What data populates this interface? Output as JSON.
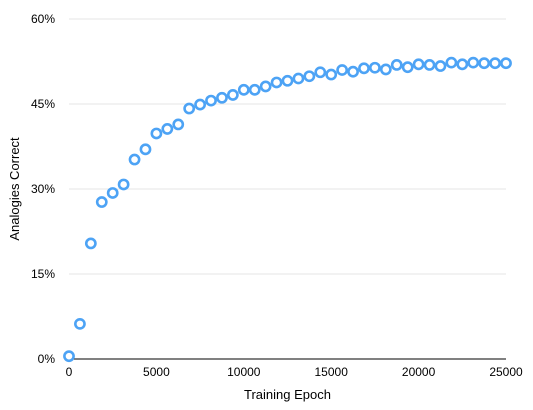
{
  "chart_data": {
    "type": "scatter",
    "title": "",
    "xlabel": "Training Epoch",
    "ylabel": "Analogies Correct",
    "xlim": [
      0,
      25000
    ],
    "ylim": [
      0,
      60
    ],
    "xticks": [
      0,
      5000,
      10000,
      15000,
      20000,
      25000
    ],
    "xtick_labels": [
      "0",
      "5000",
      "10000",
      "15000",
      "20000",
      "25000"
    ],
    "yticks": [
      0,
      15,
      30,
      45,
      60
    ],
    "ytick_labels": [
      "0%",
      "15%",
      "30%",
      "45%",
      "60%"
    ],
    "grid": "horizontal",
    "legend": "none",
    "marker_color": "#4da3f5",
    "series": [
      {
        "marker": "hollow-circle",
        "x": [
          0,
          625,
          1250,
          1875,
          2500,
          3125,
          3750,
          4375,
          5000,
          5625,
          6250,
          6875,
          7500,
          8125,
          8750,
          9375,
          10000,
          10625,
          11250,
          11875,
          12500,
          13125,
          13750,
          14375,
          15000,
          15625,
          16250,
          16875,
          17500,
          18125,
          18750,
          19375,
          20000,
          20625,
          21250,
          21875,
          22500,
          23125,
          23750,
          24375,
          25000
        ],
        "y": [
          0.5,
          6.2,
          20.4,
          27.7,
          29.3,
          30.8,
          35.2,
          37.0,
          39.8,
          40.6,
          41.4,
          44.2,
          44.9,
          45.6,
          46.1,
          46.6,
          47.5,
          47.5,
          48.1,
          48.8,
          49.1,
          49.5,
          49.9,
          50.6,
          50.2,
          51.0,
          50.7,
          51.3,
          51.4,
          51.1,
          51.9,
          51.5,
          52.0,
          51.9,
          51.7,
          52.3,
          52.0,
          52.3,
          52.2,
          52.2,
          52.2
        ]
      }
    ]
  }
}
